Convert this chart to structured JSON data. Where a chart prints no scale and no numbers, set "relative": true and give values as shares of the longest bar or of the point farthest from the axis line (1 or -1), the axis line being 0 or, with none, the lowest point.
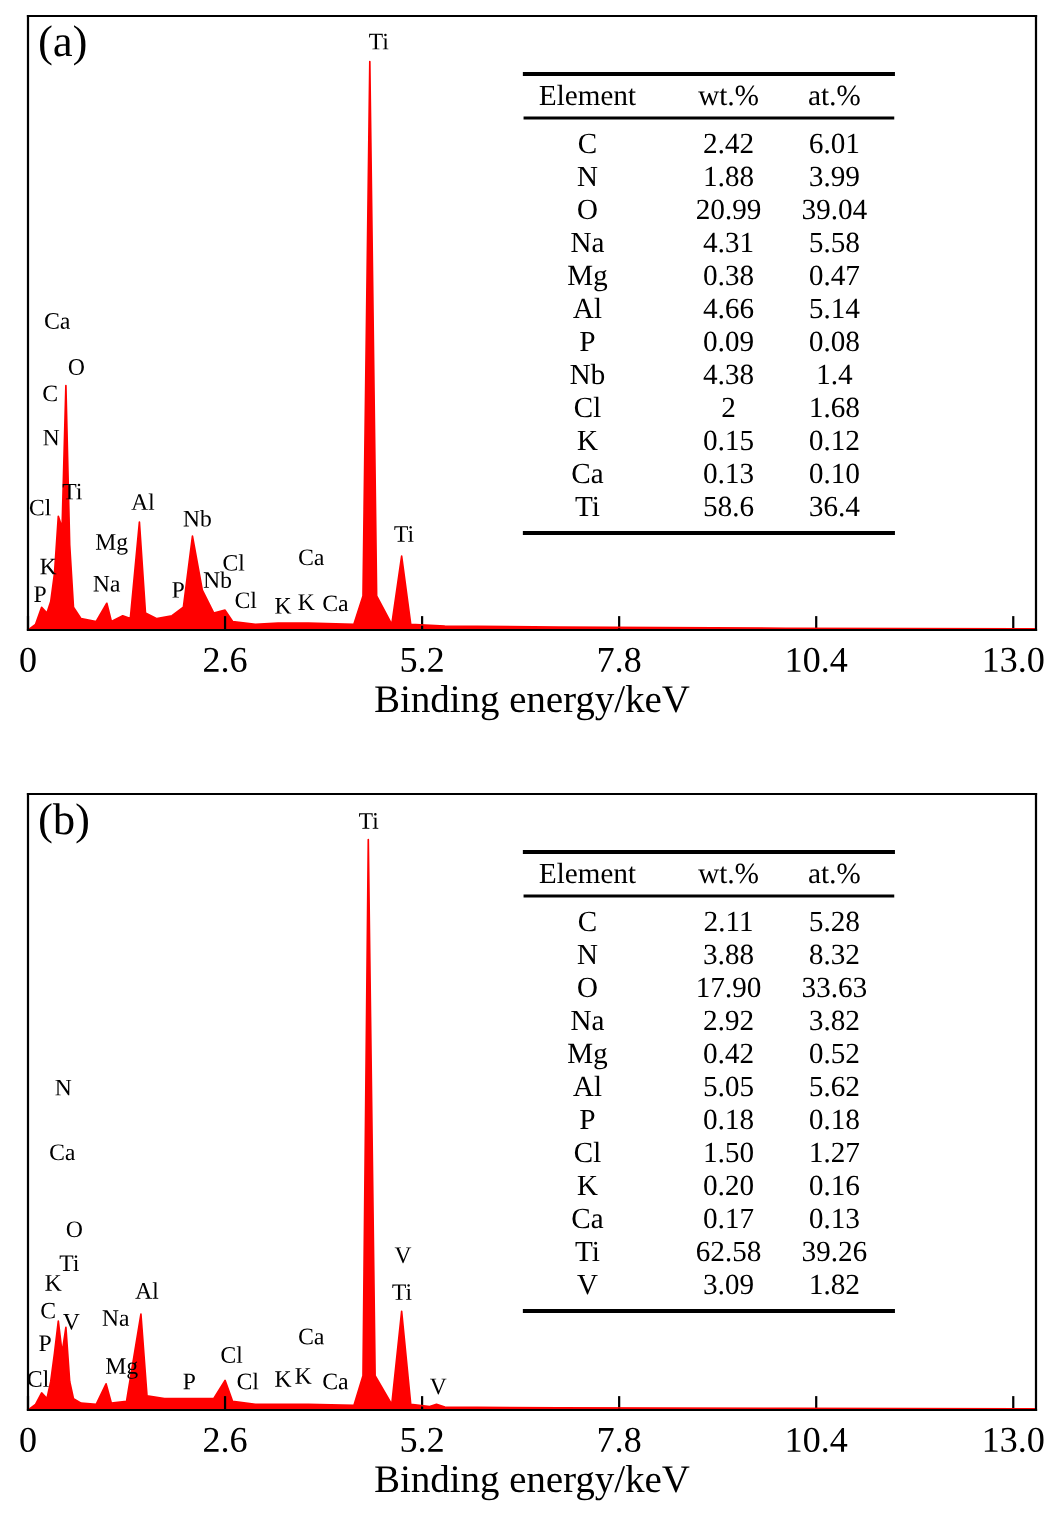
{
  "chart_data": [
    {
      "type": "area",
      "title": "(a)",
      "xlabel": "Binding energy/keV",
      "relative": true,
      "xlim": [
        0,
        13.3
      ],
      "xticks": [
        0,
        2.6,
        5.2,
        7.8,
        10.4,
        {
          "value": 13.0,
          "label": "13.0"
        }
      ],
      "grid": false,
      "series": [
        {
          "color": "#ff0000",
          "x": [
            0,
            0.1,
            0.18,
            0.25,
            0.3,
            0.35,
            0.4,
            0.45,
            0.5,
            0.55,
            0.6,
            0.7,
            0.9,
            1.04,
            1.1,
            1.25,
            1.35,
            1.47,
            1.55,
            1.7,
            1.9,
            2.05,
            2.17,
            2.3,
            2.45,
            2.6,
            2.7,
            3.0,
            3.3,
            3.7,
            4.3,
            4.42,
            4.51,
            4.6,
            4.8,
            4.93,
            5.05,
            5.5,
            7,
            10,
            13.3
          ],
          "values": [
            0,
            0.01,
            0.04,
            0.03,
            0.05,
            0.1,
            0.2,
            0.18,
            0.43,
            0.15,
            0.04,
            0.02,
            0.015,
            0.047,
            0.015,
            0.025,
            0.02,
            0.19,
            0.03,
            0.02,
            0.025,
            0.04,
            0.165,
            0.07,
            0.03,
            0.035,
            0.015,
            0.01,
            0.012,
            0.012,
            0.01,
            0.06,
            1.0,
            0.06,
            0.01,
            0.13,
            0.01,
            0.007,
            0.005,
            0.003,
            0.002
          ]
        }
      ],
      "annotations": [
        "Ti",
        "Ca",
        "O",
        "C",
        "N",
        "Cl",
        "Ti",
        "K",
        "P",
        "Na",
        "Mg",
        "Al",
        "Nb",
        "P",
        "Nb",
        "Cl",
        "Cl",
        "K",
        "K",
        "Ca",
        "Ca",
        "Ti",
        "Element",
        "wt.%",
        "at.%",
        "C",
        "2.42",
        "6.01",
        "N",
        "1.88",
        "3.99",
        "O",
        "20.99",
        "39.04",
        "Na",
        "4.31",
        "5.58",
        "Mg",
        "0.38",
        "0.47",
        "Al",
        "4.66",
        "5.14",
        "P",
        "0.09",
        "0.08",
        "Nb",
        "4.38",
        "1.4",
        "Cl",
        "2",
        "1.68",
        "K",
        "0.15",
        "0.12",
        "Ca",
        "0.13",
        "0.10",
        "Ti",
        "58.6",
        "36.4"
      ]
    },
    {
      "type": "area",
      "title": "(b)",
      "xlabel": "Binding energy/keV",
      "relative": true,
      "xlim": [
        0,
        13.3
      ],
      "xticks": [
        0,
        2.6,
        5.2,
        7.8,
        10.4,
        {
          "value": 13.0,
          "label": "13.0"
        }
      ],
      "grid": false,
      "series": [
        {
          "color": "#ff0000",
          "x": [
            0,
            0.1,
            0.18,
            0.25,
            0.3,
            0.35,
            0.4,
            0.45,
            0.5,
            0.55,
            0.6,
            0.7,
            0.9,
            1.03,
            1.1,
            1.3,
            1.49,
            1.57,
            1.8,
            2.1,
            2.45,
            2.6,
            2.7,
            3.0,
            3.4,
            3.7,
            4.3,
            4.42,
            4.49,
            4.58,
            4.8,
            4.93,
            5.05,
            5.3,
            5.39,
            5.5,
            7,
            10,
            13.3
          ],
          "values": [
            0,
            0.01,
            0.03,
            0.02,
            0.05,
            0.1,
            0.156,
            0.1,
            0.145,
            0.05,
            0.02,
            0.012,
            0.01,
            0.046,
            0.012,
            0.015,
            0.168,
            0.025,
            0.02,
            0.02,
            0.02,
            0.052,
            0.015,
            0.01,
            0.01,
            0.01,
            0.008,
            0.06,
            1.0,
            0.06,
            0.01,
            0.173,
            0.01,
            0.006,
            0.01,
            0.005,
            0.004,
            0.003,
            0.002
          ]
        }
      ],
      "annotations": [
        "Ti",
        "N",
        "Ca",
        "O",
        "Ti",
        "K",
        "C",
        "V",
        "P",
        "Cl",
        "Na",
        "Mg",
        "Al",
        "P",
        "Cl",
        "Cl",
        "K",
        "K",
        "Ca",
        "Ca",
        "V",
        "Ti",
        "V",
        "Element",
        "wt.%",
        "at.%",
        "C",
        "2.11",
        "5.28",
        "N",
        "3.88",
        "8.32",
        "O",
        "17.90",
        "33.63",
        "Na",
        "2.92",
        "3.82",
        "Mg",
        "0.42",
        "0.52",
        "Al",
        "5.05",
        "5.62",
        "P",
        "0.18",
        "0.18",
        "Cl",
        "1.50",
        "1.27",
        "K",
        "0.20",
        "0.16",
        "Ca",
        "0.17",
        "0.13",
        "Ti",
        "62.58",
        "39.26",
        "V",
        "3.09",
        "1.82"
      ]
    }
  ]
}
